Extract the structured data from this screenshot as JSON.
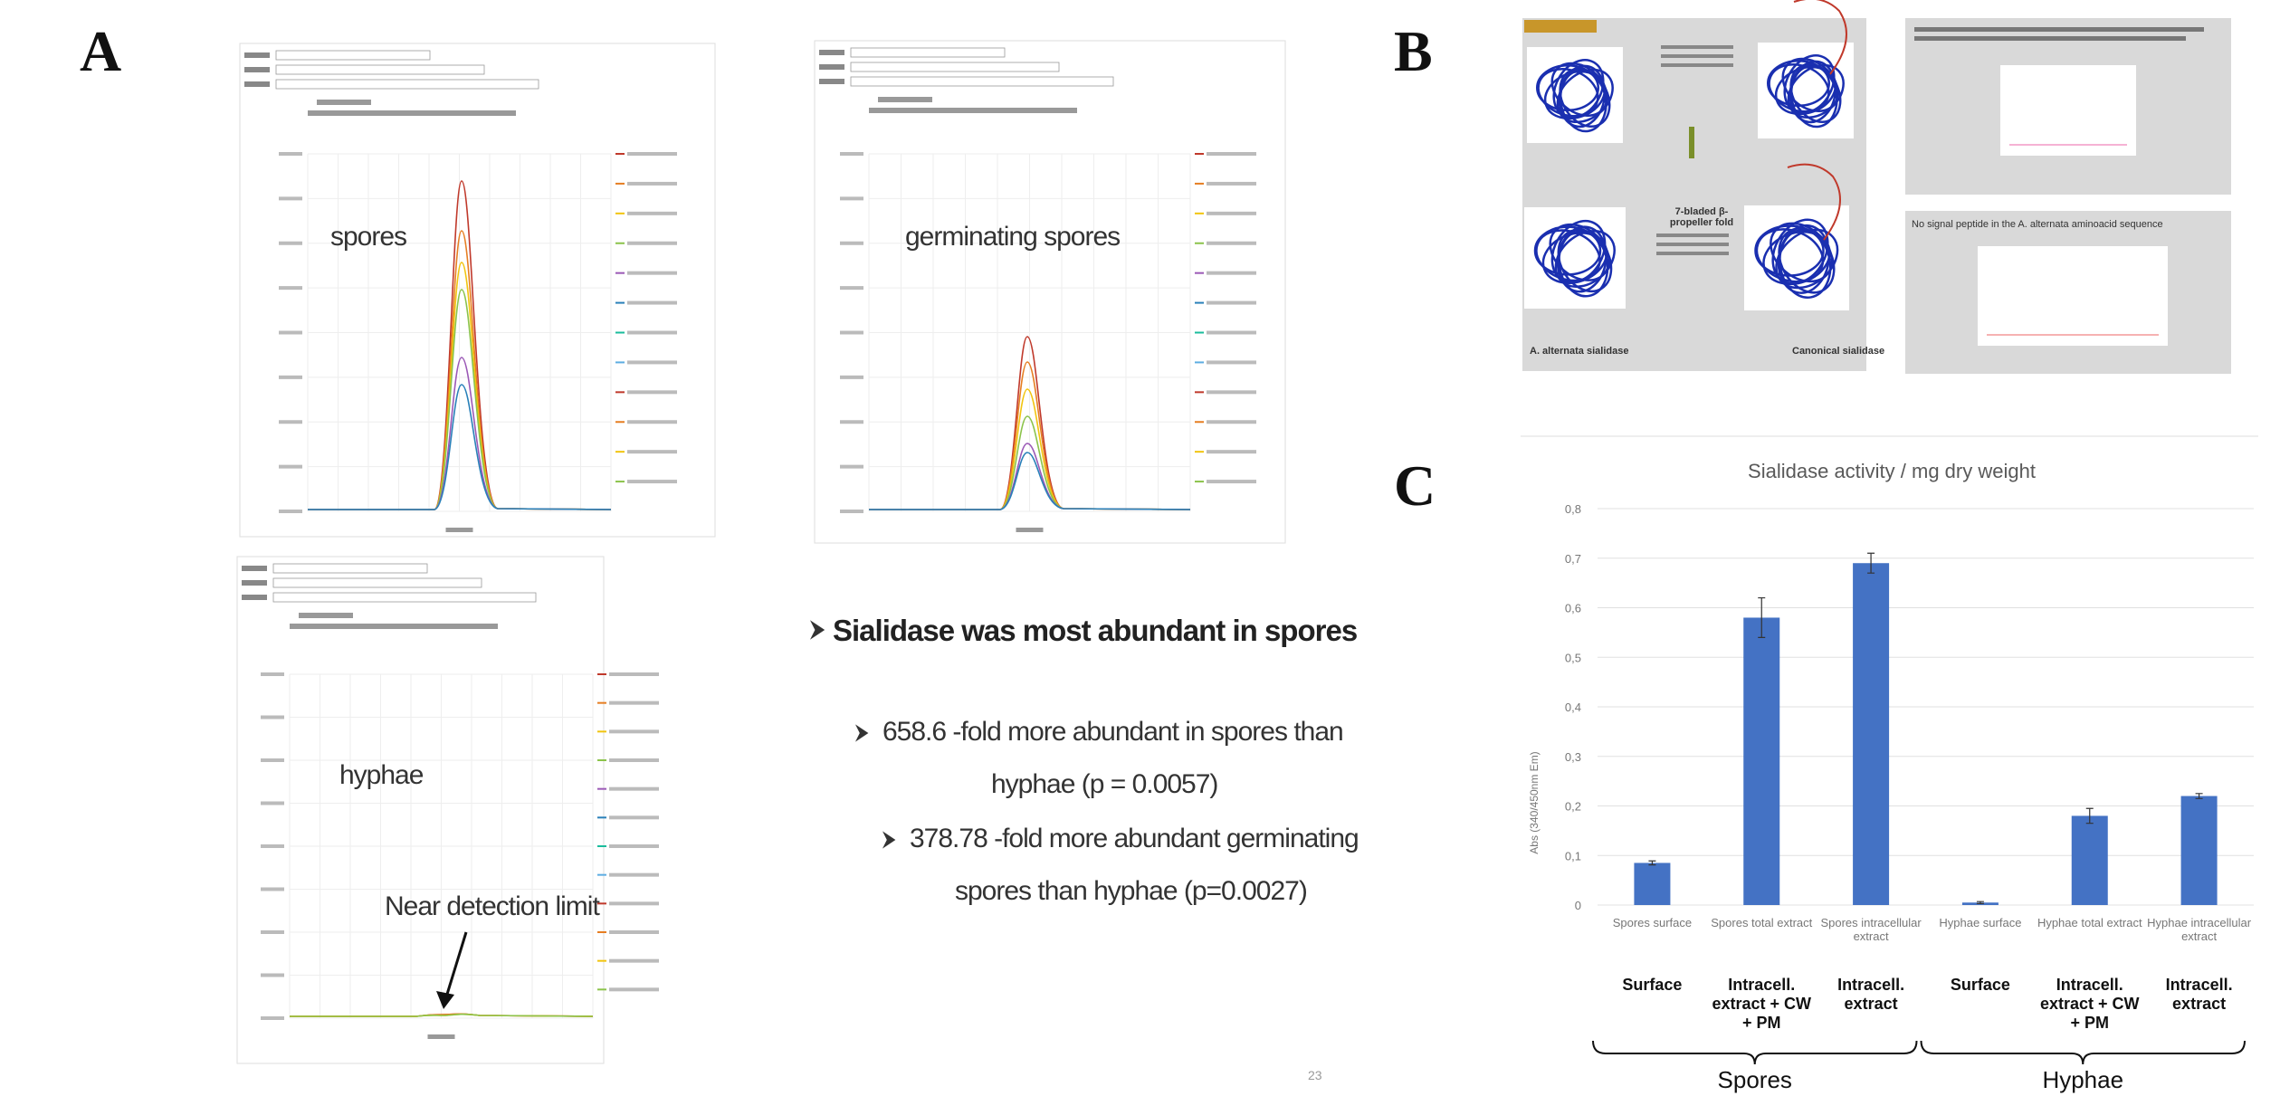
{
  "panel_letters": [
    "A",
    "B",
    "C"
  ],
  "panel_a": {
    "labels": [
      "spores",
      "germinating spores",
      "hyphae",
      "Near detection limit"
    ],
    "headline": "Sialidase was most abundant in spores",
    "bullets": [
      "658.6 -fold more abundant in spores than",
      "hyphae (p = 0.0057)",
      "378.78 -fold more abundant germinating",
      "spores than hyphae (p=0.0027)"
    ],
    "page_number": "23"
  },
  "panel_b": {
    "captions": [
      "A. alternata sialidase",
      "Canonical sialidase",
      "7-bladed β-propeller fold",
      "No signal peptide in the A. alternata aminoacid sequence"
    ]
  },
  "chart_data": {
    "type": "bar",
    "title": "Sialidase activity / mg dry weight",
    "y_label": "Abs (340/450nm Em)",
    "categories": [
      "Spores surface",
      "Spores total extract",
      "Spores intracellular extract",
      "Hyphae surface",
      "Hyphae total extract",
      "Hyphae intracellular extract"
    ],
    "values": [
      0.085,
      0.58,
      0.69,
      0.005,
      0.18,
      0.22
    ],
    "errors": [
      0.004,
      0.04,
      0.02,
      0.002,
      0.015,
      0.005
    ],
    "color": "#4472c4",
    "ylim": [
      0,
      0.8
    ],
    "yticks": [
      0,
      {
        "value": 0.1,
        "label": "0,1"
      },
      {
        "value": 0.2,
        "label": "0,2"
      },
      {
        "value": 0.3,
        "label": "0,3"
      },
      {
        "value": 0.4,
        "label": "0,4"
      },
      {
        "value": 0.5,
        "label": "0,5"
      },
      {
        "value": 0.6,
        "label": "0,6"
      },
      {
        "value": 0.7,
        "label": "0,7"
      },
      {
        "value": 0.8,
        "label": "0,8"
      }
    ],
    "grid": true,
    "sublabels": [
      "Surface",
      "Intracell. extract + CW + PM",
      "Intracell. extract",
      "Surface",
      "Intracell. extract + CW + PM",
      "Intracell. extract"
    ],
    "groups": [
      "Spores",
      "Hyphae"
    ]
  }
}
